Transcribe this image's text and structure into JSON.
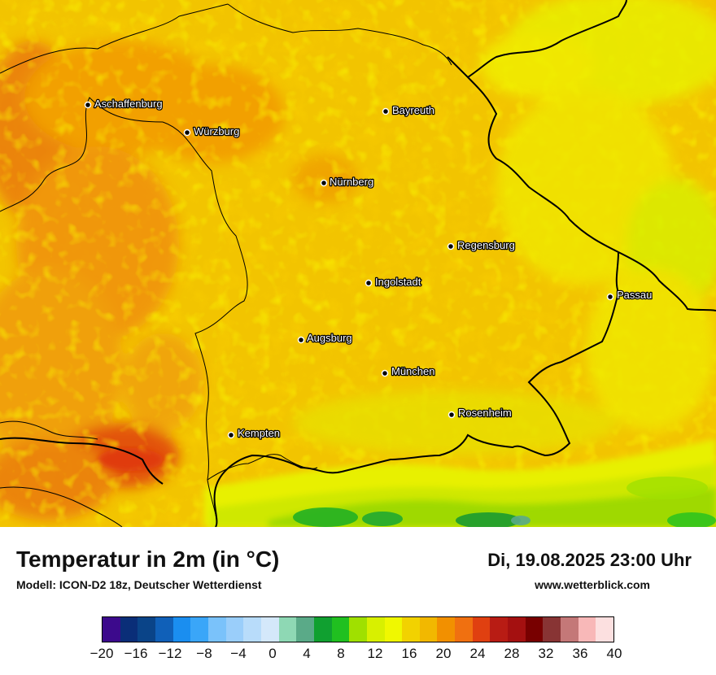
{
  "map": {
    "cities": [
      {
        "name": "Aschaffenburg"
      },
      {
        "name": "Würzburg"
      },
      {
        "name": "Bayreuth"
      },
      {
        "name": "Nürnberg"
      },
      {
        "name": "Regensburg"
      },
      {
        "name": "Ingolstadt"
      },
      {
        "name": "Passau"
      },
      {
        "name": "Augsburg"
      },
      {
        "name": "München"
      },
      {
        "name": "Rosenheim"
      },
      {
        "name": "Kempten"
      }
    ],
    "colors": {
      "base_yellow": "#f2cc00",
      "orange": "#f2a000",
      "dark_orange": "#ea7a10",
      "bright_yellow": "#f0f000",
      "lime": "#cfe800",
      "green": "#22b022",
      "dark_green": "#0a9a2a",
      "red": "#e03a10"
    }
  },
  "footer": {
    "title": "Temperatur in 2m (in °C)",
    "subtitle": "Modell: ICON-D2 18z, Deutscher Wetterdienst",
    "datetime": "Di, 19.08.2025 23:00 Uhr",
    "site": "www.wetterblick.com"
  },
  "colorbar": {
    "colors": [
      "#3c0a8c",
      "#0a2e78",
      "#0a4488",
      "#1060b8",
      "#1a8ef0",
      "#3aa6f8",
      "#7ac2fa",
      "#9acefa",
      "#b8dcfa",
      "#d4e8fa",
      "#8ed8b4",
      "#5aaa88",
      "#10a030",
      "#20c020",
      "#a0e000",
      "#d8f000",
      "#f0f800",
      "#f2d200",
      "#f2b800",
      "#f29000",
      "#f07010",
      "#e04010",
      "#b81c14",
      "#a41010",
      "#780000",
      "#883434",
      "#c47878",
      "#f8b8b8",
      "#fce0e0"
    ],
    "tick_labels": [
      "−20",
      "−16",
      "−12",
      "−8",
      "−4",
      "0",
      "4",
      "8",
      "12",
      "16",
      "20",
      "24",
      "28",
      "32",
      "36",
      "40"
    ]
  }
}
